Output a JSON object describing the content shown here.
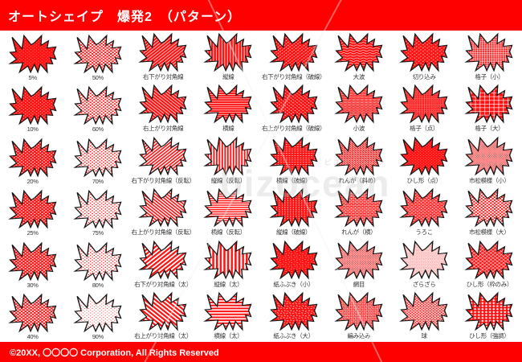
{
  "header": {
    "title": "オートシェイプ　爆発2　（パターン）"
  },
  "footer": {
    "copyright": "©20XX, 〇〇〇〇 Corporation, All Rights Reserved"
  },
  "watermark": {
    "text": "bizocean",
    "subtext": "ビズオーシャン"
  },
  "colors": {
    "accent_red": "#ff0000",
    "pattern_red": "#ff1212",
    "shape_outline": "#141414",
    "label_text": "#333333"
  },
  "grid": {
    "rows": [
      [
        {
          "label": "5%",
          "pattern": "pct5"
        },
        {
          "label": "50%",
          "pattern": "pct50"
        },
        {
          "label": "右下がり対角線",
          "pattern": "diag-down"
        },
        {
          "label": "縦線",
          "pattern": "vert"
        },
        {
          "label": "右下がり対角線（破線）",
          "pattern": "diag-down-dash"
        },
        {
          "label": "大波",
          "pattern": "wave-large"
        },
        {
          "label": "切り込み",
          "pattern": "divot"
        },
        {
          "label": "格子（小）",
          "pattern": "grid-small"
        }
      ],
      [
        {
          "label": "10%",
          "pattern": "pct10"
        },
        {
          "label": "60%",
          "pattern": "pct60"
        },
        {
          "label": "右上がり対角線",
          "pattern": "diag-up"
        },
        {
          "label": "横線",
          "pattern": "horz"
        },
        {
          "label": "右上がり対角線（破線）",
          "pattern": "diag-up-dash"
        },
        {
          "label": "小波",
          "pattern": "wave-small"
        },
        {
          "label": "格子（点）",
          "pattern": "grid-dot"
        },
        {
          "label": "格子（大）",
          "pattern": "grid-large"
        }
      ],
      [
        {
          "label": "20%",
          "pattern": "pct20"
        },
        {
          "label": "70%",
          "pattern": "pct70"
        },
        {
          "label": "右下がり対角線（反転）",
          "pattern": "diag-down-rev"
        },
        {
          "label": "縦線（反転）",
          "pattern": "vert-rev"
        },
        {
          "label": "横線（破線）",
          "pattern": "horz-dash"
        },
        {
          "label": "れんが（斜め）",
          "pattern": "brick-diag"
        },
        {
          "label": "ひし形（点）",
          "pattern": "diamond-dot"
        },
        {
          "label": "市松模様（小）",
          "pattern": "checker-small"
        }
      ],
      [
        {
          "label": "25%",
          "pattern": "pct25"
        },
        {
          "label": "75%",
          "pattern": "pct75"
        },
        {
          "label": "右上がり対角線（反転）",
          "pattern": "diag-up-rev"
        },
        {
          "label": "横線（反転）",
          "pattern": "horz-rev"
        },
        {
          "label": "縦線（破線）",
          "pattern": "vert-dash"
        },
        {
          "label": "れんが（横）",
          "pattern": "brick-horz"
        },
        {
          "label": "うろこ",
          "pattern": "scales"
        },
        {
          "label": "市松模様（大）",
          "pattern": "checker-large"
        }
      ],
      [
        {
          "label": "30%",
          "pattern": "pct30"
        },
        {
          "label": "80%",
          "pattern": "pct80"
        },
        {
          "label": "右下がり対角線（太）",
          "pattern": "diag-down-wide"
        },
        {
          "label": "縦線（太）",
          "pattern": "vert-wide"
        },
        {
          "label": "紙ふぶき（小）",
          "pattern": "confetti-small"
        },
        {
          "label": "網目",
          "pattern": "weave-net"
        },
        {
          "label": "ざらざら",
          "pattern": "rough"
        },
        {
          "label": "ひし形（枠のみ）",
          "pattern": "diamond-outline"
        }
      ],
      [
        {
          "label": "40%",
          "pattern": "pct40"
        },
        {
          "label": "90%",
          "pattern": "pct90"
        },
        {
          "label": "右上がり対角線（太）",
          "pattern": "diag-up-wide"
        },
        {
          "label": "横線（太）",
          "pattern": "horz-wide"
        },
        {
          "label": "紙ふぶき（大）",
          "pattern": "confetti-large"
        },
        {
          "label": "編み込み",
          "pattern": "woven"
        },
        {
          "label": "球",
          "pattern": "sphere"
        },
        {
          "label": "ひし形（強調）",
          "pattern": "diamond-solid"
        }
      ]
    ]
  }
}
